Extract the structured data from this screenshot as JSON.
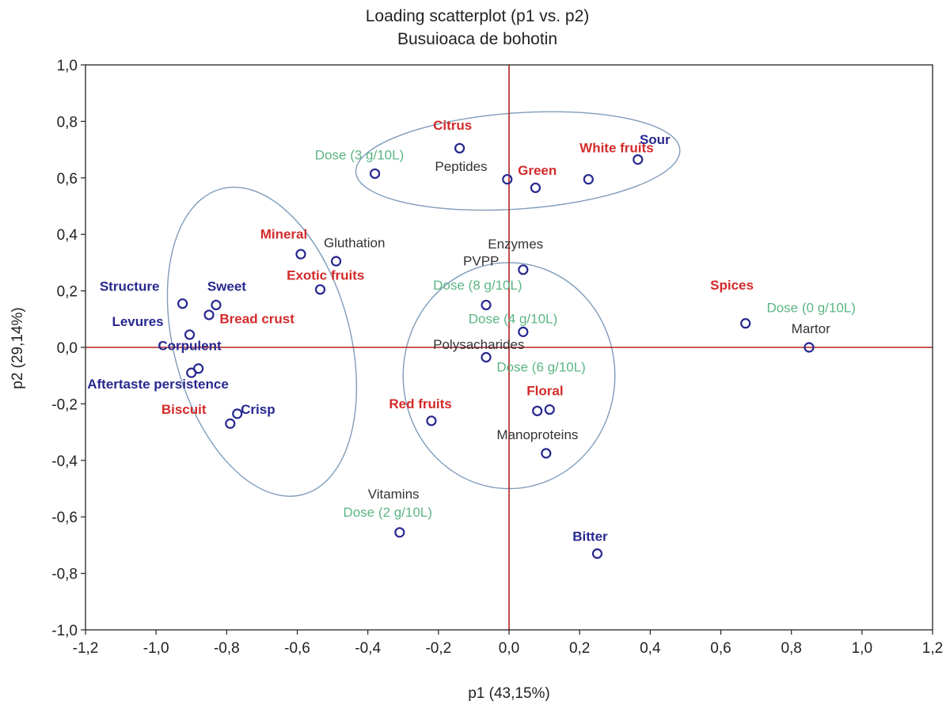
{
  "chart_data": {
    "type": "scatter",
    "title": "Loading scatterplot (p1 vs. p2)",
    "subtitle": "Busuioaca de bohotin",
    "xlabel": "p1 (43,15%)",
    "ylabel": "p2 (29,14%)",
    "xlim": [
      -1.2,
      1.2
    ],
    "ylim": [
      -1.0,
      1.0
    ],
    "x_ticks": [
      -1.2,
      -1.0,
      -0.8,
      -0.6,
      -0.4,
      -0.2,
      0.0,
      0.2,
      0.4,
      0.6,
      0.8,
      1.0,
      1.2
    ],
    "y_ticks": [
      -1.0,
      -0.8,
      -0.6,
      -0.4,
      -0.2,
      0.0,
      0.2,
      0.4,
      0.6,
      0.8,
      1.0
    ],
    "x_tick_labels": [
      "-1,2",
      "-1,0",
      "-0,8",
      "-0,6",
      "-0,4",
      "-0,2",
      "0,0",
      "0,2",
      "0,4",
      "0,6",
      "0,8",
      "1,0",
      "1,2"
    ],
    "y_tick_labels": [
      "-1,0",
      "-0,8",
      "-0,6",
      "-0,4",
      "-0,2",
      "0,0",
      "0,2",
      "0,4",
      "0,6",
      "0,8",
      "1,0"
    ],
    "grid": false,
    "reference_lines": {
      "x": 0.0,
      "y": 0.0,
      "color": "#b22222"
    },
    "group_colors": {
      "dose": "#5cb585",
      "chemical": "#333333",
      "sensory_red": "#d32a2a",
      "sensory_blue": "#27288f",
      "marker": "#27288f",
      "ellipse": "#7f9cba"
    },
    "points": [
      {
        "x": -0.14,
        "y": 0.705
      },
      {
        "x": -0.38,
        "y": 0.615
      },
      {
        "x": -0.005,
        "y": 0.595
      },
      {
        "x": 0.075,
        "y": 0.565
      },
      {
        "x": 0.225,
        "y": 0.595
      },
      {
        "x": 0.365,
        "y": 0.665
      },
      {
        "x": -0.59,
        "y": 0.33
      },
      {
        "x": -0.49,
        "y": 0.305
      },
      {
        "x": -0.535,
        "y": 0.205
      },
      {
        "x": -0.925,
        "y": 0.155
      },
      {
        "x": -0.83,
        "y": 0.15
      },
      {
        "x": -0.85,
        "y": 0.115
      },
      {
        "x": -0.905,
        "y": 0.045
      },
      {
        "x": -0.88,
        "y": -0.075
      },
      {
        "x": -0.9,
        "y": -0.09
      },
      {
        "x": -0.77,
        "y": -0.235
      },
      {
        "x": -0.79,
        "y": -0.27
      },
      {
        "x": 0.04,
        "y": 0.275
      },
      {
        "x": -0.065,
        "y": 0.15
      },
      {
        "x": 0.04,
        "y": 0.055
      },
      {
        "x": -0.065,
        "y": -0.035
      },
      {
        "x": -0.22,
        "y": -0.26
      },
      {
        "x": 0.08,
        "y": -0.225
      },
      {
        "x": 0.115,
        "y": -0.22
      },
      {
        "x": 0.105,
        "y": -0.375
      },
      {
        "x": -0.31,
        "y": -0.655
      },
      {
        "x": 0.25,
        "y": -0.73
      },
      {
        "x": 0.67,
        "y": 0.085
      },
      {
        "x": 0.85,
        "y": 0.0
      }
    ],
    "labels": [
      {
        "text": "Citrus",
        "group": "sensory_red",
        "x": -0.215,
        "y": 0.77,
        "bold": true
      },
      {
        "text": "Dose (3 g/10L)",
        "group": "dose",
        "x": -0.55,
        "y": 0.665,
        "bold": false
      },
      {
        "text": "Peptides",
        "group": "chemical",
        "x": -0.21,
        "y": 0.625,
        "bold": false
      },
      {
        "text": "Green",
        "group": "sensory_red",
        "x": 0.025,
        "y": 0.61,
        "bold": true
      },
      {
        "text": "White fruits",
        "group": "sensory_red",
        "x": 0.2,
        "y": 0.69,
        "bold": true
      },
      {
        "text": "Sour",
        "group": "sensory_blue",
        "x": 0.37,
        "y": 0.72,
        "bold": true
      },
      {
        "text": "Mineral",
        "group": "sensory_red",
        "x": -0.705,
        "y": 0.385,
        "bold": true
      },
      {
        "text": "Gluthation",
        "group": "chemical",
        "x": -0.525,
        "y": 0.355,
        "bold": false
      },
      {
        "text": "Exotic fruits",
        "group": "sensory_red",
        "x": -0.63,
        "y": 0.24,
        "bold": true
      },
      {
        "text": "Structure",
        "group": "sensory_blue",
        "x": -1.16,
        "y": 0.2,
        "bold": true
      },
      {
        "text": "Sweet",
        "group": "sensory_blue",
        "x": -0.855,
        "y": 0.2,
        "bold": true
      },
      {
        "text": "Bread crust",
        "group": "sensory_red",
        "x": -0.82,
        "y": 0.085,
        "bold": true
      },
      {
        "text": "Levures",
        "group": "sensory_blue",
        "x": -1.125,
        "y": 0.075,
        "bold": true
      },
      {
        "text": "Corpulent",
        "group": "sensory_blue",
        "x": -0.995,
        "y": -0.01,
        "bold": true
      },
      {
        "text": "Aftertaste persistence",
        "group": "sensory_blue",
        "x": -1.195,
        "y": -0.145,
        "bold": true
      },
      {
        "text": "Biscuit",
        "group": "sensory_red",
        "x": -0.985,
        "y": -0.235,
        "bold": true
      },
      {
        "text": "Crisp",
        "group": "sensory_blue",
        "x": -0.76,
        "y": -0.235,
        "bold": true
      },
      {
        "text": "Enzymes",
        "group": "chemical",
        "x": -0.06,
        "y": 0.35,
        "bold": false
      },
      {
        "text": "PVPP",
        "group": "chemical",
        "x": -0.13,
        "y": 0.29,
        "bold": false
      },
      {
        "text": "Dose (8 g/10L)",
        "group": "dose",
        "x": -0.215,
        "y": 0.205,
        "bold": false
      },
      {
        "text": "Dose (4 g/10L)",
        "group": "dose",
        "x": -0.115,
        "y": 0.085,
        "bold": false
      },
      {
        "text": "Polysacharides",
        "group": "chemical",
        "x": -0.215,
        "y": -0.005,
        "bold": false
      },
      {
        "text": "Dose (6 g/10L)",
        "group": "dose",
        "x": -0.035,
        "y": -0.085,
        "bold": false
      },
      {
        "text": "Floral",
        "group": "sensory_red",
        "x": 0.05,
        "y": -0.17,
        "bold": true
      },
      {
        "text": "Red fruits",
        "group": "sensory_red",
        "x": -0.34,
        "y": -0.215,
        "bold": true
      },
      {
        "text": "Manoproteins",
        "group": "chemical",
        "x": -0.035,
        "y": -0.325,
        "bold": false
      },
      {
        "text": "Vitamins",
        "group": "chemical",
        "x": -0.4,
        "y": -0.535,
        "bold": false
      },
      {
        "text": "Dose (2 g/10L)",
        "group": "dose",
        "x": -0.47,
        "y": -0.6,
        "bold": false
      },
      {
        "text": "Bitter",
        "group": "sensory_blue",
        "x": 0.18,
        "y": -0.685,
        "bold": true
      },
      {
        "text": "Spices",
        "group": "sensory_red",
        "x": 0.57,
        "y": 0.205,
        "bold": true
      },
      {
        "text": "Dose (0 g/10L)",
        "group": "dose",
        "x": 0.73,
        "y": 0.125,
        "bold": false
      },
      {
        "text": "Martor",
        "group": "chemical",
        "x": 0.8,
        "y": 0.05,
        "bold": false
      }
    ],
    "ellipses": [
      {
        "cx": 0.025,
        "cy": 0.66,
        "rx": 0.46,
        "ry": 0.17,
        "rotation_deg": -4
      },
      {
        "cx": -0.7,
        "cy": 0.02,
        "rx": 0.25,
        "ry": 0.56,
        "rotation_deg": -15
      },
      {
        "cx": 0.0,
        "cy": -0.1,
        "rx": 0.3,
        "ry": 0.4,
        "rotation_deg": 0
      }
    ]
  }
}
